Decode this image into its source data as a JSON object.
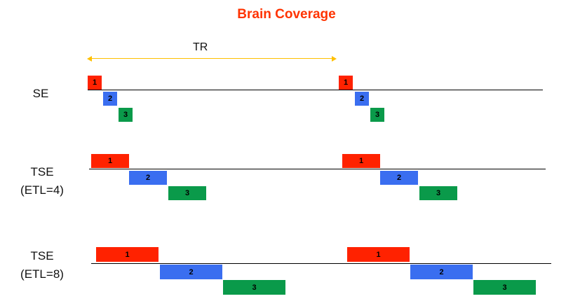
{
  "title": "Brain Coverage",
  "tr_label": "TR",
  "colors": {
    "title": "#ff3300",
    "tr_arrow": "#ffc000",
    "block_1": "#ff2200",
    "block_2": "#3a6ef0",
    "block_3": "#0a9a4a"
  },
  "rows": [
    {
      "label_line1": "SE",
      "label_line2": "",
      "echo_train_length": 1,
      "blocks": [
        "1",
        "2",
        "3"
      ]
    },
    {
      "label_line1": "TSE",
      "label_line2": "(ETL=4)",
      "echo_train_length": 4,
      "blocks": [
        "1",
        "2",
        "3"
      ]
    },
    {
      "label_line1": "TSE",
      "label_line2": "(ETL=8)",
      "echo_train_length": 8,
      "blocks": [
        "1",
        "2",
        "3"
      ]
    }
  ]
}
